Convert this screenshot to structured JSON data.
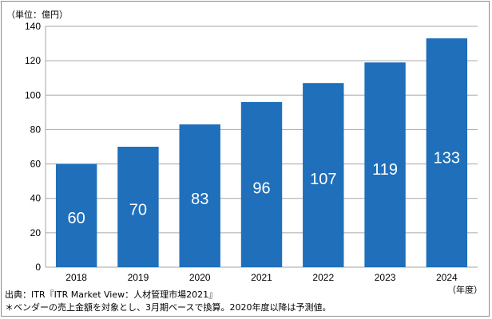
{
  "chart_data": {
    "type": "bar",
    "unit_label": "（単位：億円）",
    "categories": [
      "2018",
      "2019",
      "2020",
      "2021",
      "2022",
      "2023",
      "2024"
    ],
    "values": [
      60,
      70,
      83,
      96,
      107,
      119,
      133
    ],
    "ylim": [
      0,
      140
    ],
    "yticks": [
      0,
      20,
      40,
      60,
      80,
      100,
      120,
      140
    ],
    "x_unit_label": "（年度）",
    "grid": true,
    "bar_color": "#1f6fba",
    "grid_color": "#a6a6a6",
    "label_color": "#ffffff"
  },
  "footnotes": {
    "source": "出典：ITR『ITR Market View：人材管理市場2021』",
    "note": "＊ベンダーの売上金額を対象とし、3月期ベースで換算。2020年度以降は予測値。"
  }
}
